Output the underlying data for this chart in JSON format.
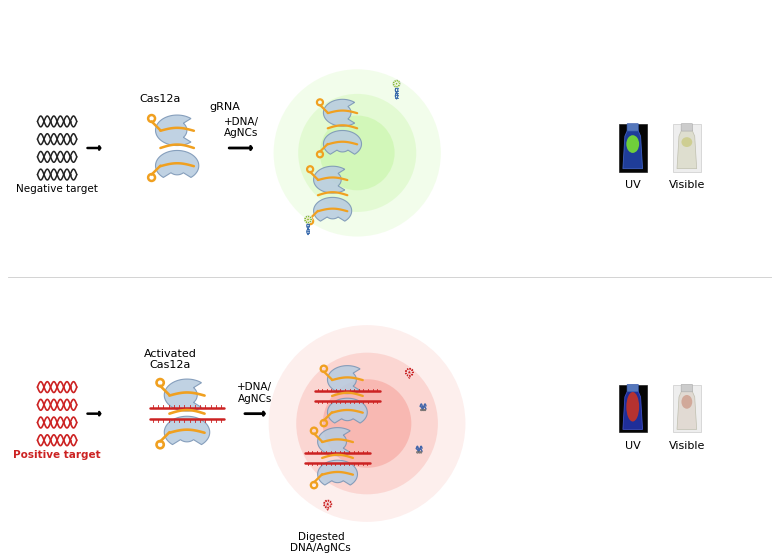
{
  "bg_color": "#ffffff",
  "top_label_cas": "Cas12a",
  "top_label_grna": "gRNA",
  "top_label_neg": "Negative target",
  "top_arrow_text": "+DNA/\nAgNCs",
  "top_uv": "UV",
  "top_visible": "Visible",
  "bottom_label_cas": "Activated\nCas12a",
  "bottom_label_pos": "Positive target",
  "bottom_arrow_text": "+DNA/\nAgNCs",
  "bottom_digested": "Digested\nDNA/AgNCs",
  "bottom_uv": "UV",
  "bottom_visible": "Visible",
  "protein_color": "#b8cce0",
  "protein_edge": "#7a95b5",
  "grna_color": "#f0a020",
  "dna_neg_color": "#222222",
  "dna_pos_color": "#cc2222",
  "agnc_green": "#88bb33",
  "agnc_red": "#cc2222",
  "probe_ring": "#3366aa",
  "fragment_color": "#4466aa",
  "fragment_grey": "#888888"
}
